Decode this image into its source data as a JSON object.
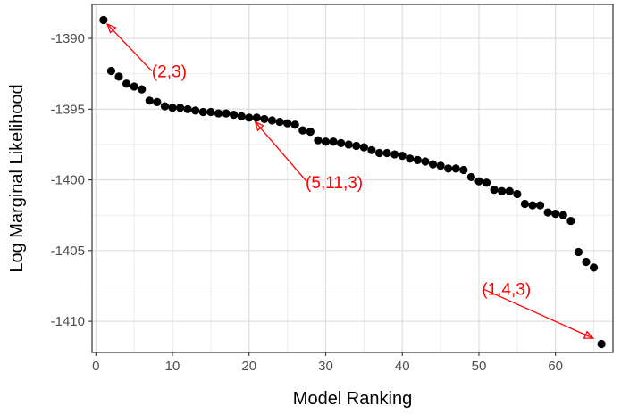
{
  "chart_data": {
    "type": "scatter",
    "title": "",
    "xlabel": "Model Ranking",
    "ylabel": "Log Marginal Likelihood",
    "xlim": [
      -0.5,
      67.5
    ],
    "ylim": [
      -1412.2,
      -1387.6
    ],
    "xticks": [
      0,
      10,
      20,
      30,
      40,
      50,
      60
    ],
    "xtick_labels": [
      "0",
      "10",
      "20",
      "30",
      "40",
      "50",
      "60"
    ],
    "yticks": [
      -1390,
      -1395,
      -1400,
      -1405,
      -1410
    ],
    "ytick_labels": [
      "-1390",
      "-1395",
      "-1400",
      "-1405",
      "-1410"
    ],
    "grid": true,
    "legend": "none",
    "point_color": "#000000",
    "x": [
      1,
      2,
      3,
      4,
      5,
      6,
      7,
      8,
      9,
      10,
      11,
      12,
      13,
      14,
      15,
      16,
      17,
      18,
      19,
      20,
      21,
      22,
      23,
      24,
      25,
      26,
      27,
      28,
      29,
      30,
      31,
      32,
      33,
      34,
      35,
      36,
      37,
      38,
      39,
      40,
      41,
      42,
      43,
      44,
      45,
      46,
      47,
      48,
      49,
      50,
      51,
      52,
      53,
      54,
      55,
      56,
      57,
      58,
      59,
      60,
      61,
      62,
      63,
      64,
      65,
      66
    ],
    "y": [
      -1388.7,
      -1392.3,
      -1392.7,
      -1393.2,
      -1393.4,
      -1393.6,
      -1394.4,
      -1394.5,
      -1394.8,
      -1394.9,
      -1394.9,
      -1395.0,
      -1395.1,
      -1395.2,
      -1395.2,
      -1395.3,
      -1395.3,
      -1395.4,
      -1395.5,
      -1395.6,
      -1395.6,
      -1395.7,
      -1395.8,
      -1395.9,
      -1396.0,
      -1396.1,
      -1396.5,
      -1396.6,
      -1397.2,
      -1397.3,
      -1397.3,
      -1397.4,
      -1397.5,
      -1397.6,
      -1397.7,
      -1397.9,
      -1398.1,
      -1398.1,
      -1398.2,
      -1398.3,
      -1398.5,
      -1398.6,
      -1398.7,
      -1398.9,
      -1399.0,
      -1399.2,
      -1399.2,
      -1399.3,
      -1399.8,
      -1400.1,
      -1400.2,
      -1400.7,
      -1400.8,
      -1400.8,
      -1401.0,
      -1401.7,
      -1401.8,
      -1401.8,
      -1402.3,
      -1402.4,
      -1402.5,
      -1402.9,
      -1405.1,
      -1405.8,
      -1406.2,
      -1411.6
    ],
    "annotations": [
      {
        "text": "(2,3)",
        "text_x": 7.3,
        "text_y": -1392.3,
        "point_x": 1.5,
        "point_y": -1389.0
      },
      {
        "text": "(5,11,3)",
        "text_x": 27.5,
        "text_y": -1400.1,
        "point_x": 20.8,
        "point_y": -1395.9
      },
      {
        "text": "(1,4,3)",
        "text_x": 50.5,
        "text_y": -1407.7,
        "point_x": 64.9,
        "point_y": -1411.2
      }
    ],
    "annotation_color": "#ff0000"
  }
}
